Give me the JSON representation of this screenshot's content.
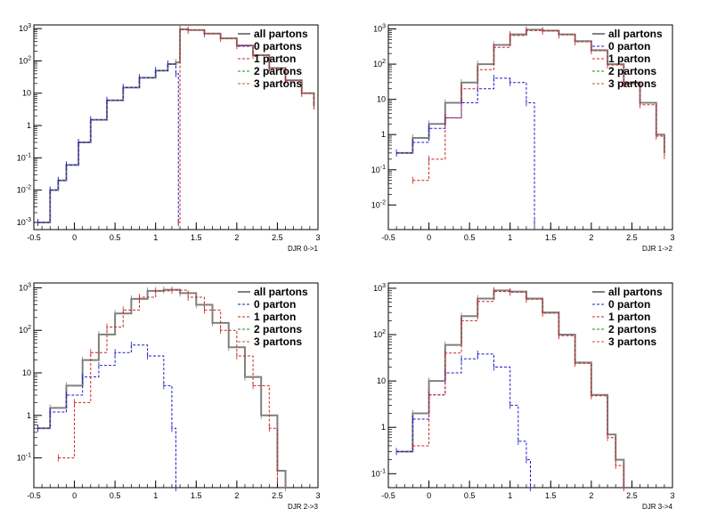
{
  "colors": {
    "all": "#808080",
    "p0": "#1a1acc",
    "p1": "#cc2222",
    "p2": "#1a8c1a",
    "p3": "#cc5522",
    "axis": "#000000",
    "background": "#ffffff"
  },
  "legend_labels": [
    "all partons",
    "0 parton",
    "1 parton",
    "2 partons",
    "3 partons"
  ],
  "legend_labels_first_panel": [
    "all partons",
    "0 partons",
    "1 parton",
    "2 partons",
    "3 partons"
  ],
  "chart_data": [
    {
      "type": "line",
      "xlabel": "DJR 0->1",
      "ylabel": "",
      "yscale": "log",
      "xlim": [
        -0.5,
        3
      ],
      "ylim": [
        0.0006,
        1300
      ],
      "xticks": [
        "-0.5",
        "0",
        "0.5",
        "1",
        "1.5",
        "2",
        "2.5",
        "3"
      ],
      "yticks": [
        "10^-3",
        "10^-2",
        "10^-1",
        "1",
        "10",
        "10^2",
        "10^3"
      ],
      "legend": "top-right",
      "grid": false,
      "series": [
        {
          "name": "all partons",
          "x": [
            -0.45,
            -0.3,
            -0.2,
            -0.1,
            0.05,
            0.2,
            0.4,
            0.6,
            0.8,
            1.0,
            1.15,
            1.25,
            1.3,
            1.4,
            1.6,
            1.8,
            2.0,
            2.2,
            2.4,
            2.6,
            2.8,
            2.95
          ],
          "y": [
            0.001,
            0.01,
            0.02,
            0.06,
            0.3,
            1.5,
            6,
            15,
            30,
            50,
            80,
            90,
            950,
            900,
            700,
            500,
            300,
            150,
            60,
            25,
            10,
            4
          ]
        },
        {
          "name": "0 partons",
          "x": [
            -0.45,
            -0.3,
            -0.2,
            -0.1,
            0.05,
            0.2,
            0.4,
            0.6,
            0.8,
            1.0,
            1.15,
            1.25,
            1.28
          ],
          "y": [
            0.001,
            0.01,
            0.02,
            0.06,
            0.3,
            1.5,
            6,
            15,
            30,
            50,
            80,
            40,
            0.001
          ]
        },
        {
          "name": "1 parton",
          "x": [
            1.28,
            1.3,
            1.4,
            1.6,
            1.8,
            2.0,
            2.2,
            2.4,
            2.6,
            2.8,
            2.95
          ],
          "y": [
            0.001,
            950,
            900,
            700,
            500,
            300,
            150,
            60,
            25,
            10,
            4
          ]
        },
        {
          "name": "2 partons",
          "x": [],
          "y": []
        },
        {
          "name": "3 partons",
          "x": [],
          "y": []
        }
      ]
    },
    {
      "type": "line",
      "xlabel": "DJR 1->2",
      "ylabel": "",
      "yscale": "log",
      "xlim": [
        -0.5,
        3
      ],
      "ylim": [
        0.002,
        1300
      ],
      "xticks": [
        "-0.5",
        "0",
        "0.5",
        "1",
        "1.5",
        "2",
        "2.5",
        "3"
      ],
      "yticks": [
        "10^-2",
        "10^-1",
        "1",
        "10",
        "10^2",
        "10^3"
      ],
      "legend": "top-right",
      "grid": false,
      "series": [
        {
          "name": "all partons",
          "x": [
            -0.4,
            -0.2,
            0.0,
            0.2,
            0.4,
            0.6,
            0.8,
            1.0,
            1.2,
            1.4,
            1.6,
            1.8,
            2.0,
            2.2,
            2.4,
            2.6,
            2.8,
            2.9
          ],
          "y": [
            0.3,
            0.8,
            2,
            8,
            30,
            100,
            350,
            700,
            950,
            900,
            700,
            450,
            250,
            100,
            30,
            8,
            1,
            0.3
          ]
        },
        {
          "name": "0 parton",
          "x": [
            -0.4,
            -0.2,
            0.0,
            0.2,
            0.4,
            0.6,
            0.8,
            1.0,
            1.2,
            1.3
          ],
          "y": [
            0.3,
            0.6,
            1.5,
            3,
            8,
            20,
            40,
            30,
            8,
            0.003
          ]
        },
        {
          "name": "1 parton",
          "x": [
            -0.2,
            0.0,
            0.2,
            0.4,
            0.6,
            0.8,
            1.0,
            1.2,
            1.4,
            1.6,
            1.8,
            2.0,
            2.2,
            2.4,
            2.6,
            2.8,
            2.9
          ],
          "y": [
            0.05,
            0.2,
            3,
            20,
            70,
            300,
            650,
            900,
            870,
            680,
            430,
            240,
            95,
            28,
            7,
            0.9,
            0.25
          ]
        },
        {
          "name": "2 partons",
          "x": [],
          "y": []
        },
        {
          "name": "3 partons",
          "x": [],
          "y": []
        }
      ]
    },
    {
      "type": "line",
      "xlabel": "DJR 2->3",
      "ylabel": "",
      "yscale": "log",
      "xlim": [
        -0.5,
        3
      ],
      "ylim": [
        0.02,
        1300
      ],
      "xticks": [
        "-0.5",
        "0",
        "0.5",
        "1",
        "1.5",
        "2",
        "2.5",
        "3"
      ],
      "yticks": [
        "10^-1",
        "1",
        "10",
        "10^2",
        "10^3"
      ],
      "legend": "top-right",
      "grid": false,
      "series": [
        {
          "name": "all partons",
          "x": [
            -0.45,
            -0.3,
            -0.1,
            0.1,
            0.3,
            0.5,
            0.7,
            0.9,
            1.1,
            1.3,
            1.5,
            1.7,
            1.9,
            2.1,
            2.3,
            2.5,
            2.6
          ],
          "y": [
            0.5,
            1.5,
            5,
            20,
            80,
            250,
            550,
            850,
            900,
            750,
            400,
            150,
            40,
            8,
            1,
            0.05,
            0.02
          ]
        },
        {
          "name": "0 parton",
          "x": [
            -0.45,
            -0.3,
            -0.1,
            0.1,
            0.3,
            0.5,
            0.7,
            0.9,
            1.1,
            1.2,
            1.25
          ],
          "y": [
            0.5,
            1.2,
            3,
            8,
            15,
            30,
            45,
            25,
            5,
            0.5,
            0.02
          ]
        },
        {
          "name": "1 parton",
          "x": [
            -0.2,
            0.0,
            0.2,
            0.4,
            0.6,
            0.8,
            1.0,
            1.2,
            1.4,
            1.6,
            1.8,
            2.0,
            2.2,
            2.4,
            2.5
          ],
          "y": [
            0.1,
            2,
            30,
            120,
            300,
            600,
            850,
            880,
            600,
            300,
            100,
            25,
            5,
            0.5,
            0.03
          ]
        },
        {
          "name": "2 partons",
          "x": [],
          "y": []
        },
        {
          "name": "3 partons",
          "x": [],
          "y": []
        }
      ]
    },
    {
      "type": "line",
      "xlabel": "DJR 3->4",
      "ylabel": "",
      "yscale": "log",
      "xlim": [
        -0.5,
        3
      ],
      "ylim": [
        0.05,
        1300
      ],
      "xticks": [
        "-0.5",
        "0",
        "0.5",
        "1",
        "1.5",
        "2",
        "2.5",
        "3"
      ],
      "yticks": [
        "10^-1",
        "1",
        "10",
        "10^2",
        "10^3"
      ],
      "legend": "top-right",
      "grid": false,
      "series": [
        {
          "name": "all partons",
          "x": [
            -0.4,
            -0.2,
            0.0,
            0.2,
            0.4,
            0.6,
            0.8,
            1.0,
            1.2,
            1.4,
            1.6,
            1.8,
            2.0,
            2.2,
            2.3,
            2.4
          ],
          "y": [
            0.3,
            2,
            10,
            60,
            250,
            600,
            900,
            850,
            600,
            300,
            100,
            25,
            5,
            0.7,
            0.2,
            0.05
          ]
        },
        {
          "name": "0 parton",
          "x": [
            -0.4,
            -0.2,
            0.0,
            0.2,
            0.4,
            0.6,
            0.8,
            1.0,
            1.1,
            1.2,
            1.25
          ],
          "y": [
            0.3,
            1.5,
            5,
            15,
            30,
            38,
            20,
            3,
            0.5,
            0.2,
            0.05
          ]
        },
        {
          "name": "1 parton",
          "x": [
            -0.2,
            0.0,
            0.2,
            0.4,
            0.6,
            0.8,
            1.0,
            1.2,
            1.4,
            1.6,
            1.8,
            2.0,
            2.2,
            2.3,
            2.4
          ],
          "y": [
            0.4,
            5,
            40,
            200,
            520,
            850,
            820,
            580,
            290,
            95,
            24,
            4.8,
            0.6,
            0.15,
            0.05
          ]
        },
        {
          "name": "2 partons",
          "x": [],
          "y": []
        },
        {
          "name": "3 partons",
          "x": [],
          "y": []
        }
      ]
    }
  ]
}
